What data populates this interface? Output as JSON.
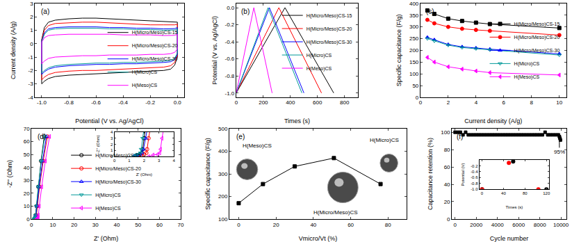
{
  "chart_data": [
    {
      "type": "line",
      "title": "(a)",
      "x_label": "Potential (V vs. Ag/AgCl)",
      "y_label": "Current density (A/g)",
      "xlim": [
        -1.05,
        0.05
      ],
      "xticks": [
        {
          "value": -1,
          "label": "-1.0"
        },
        -0.8,
        -0.6,
        -0.4,
        -0.2,
        {
          "value": 0,
          "label": "0.0"
        }
      ],
      "ylim": [
        -4,
        3
      ],
      "yticks": [
        -4,
        -3,
        -2,
        -1,
        0,
        1,
        2,
        3
      ],
      "grid": false,
      "legend": "lower right",
      "series": [
        {
          "name": "H(Micro/Meso)CS-15",
          "color": "#000000",
          "x": [
            -1.0,
            -0.98,
            -0.95,
            -0.9,
            -0.8,
            -0.7,
            -0.6,
            -0.5,
            -0.4,
            -0.3,
            -0.2,
            -0.1,
            -0.05,
            -0.02,
            0.0,
            0.0,
            -0.02,
            -0.05,
            -0.1,
            -0.2,
            -0.3,
            -0.4,
            -0.5,
            -0.6,
            -0.7,
            -0.8,
            -0.9,
            -0.95,
            -0.98,
            -1.0,
            -1.0
          ],
          "values": [
            0.3,
            1.2,
            1.6,
            1.75,
            1.85,
            1.9,
            1.9,
            1.85,
            1.8,
            1.75,
            1.7,
            1.65,
            1.65,
            1.62,
            1.6,
            -1.0,
            -1.6,
            -1.9,
            -2.0,
            -2.05,
            -2.1,
            -2.15,
            -2.2,
            -2.25,
            -2.3,
            -2.35,
            -2.45,
            -2.6,
            -2.8,
            -3.0,
            0.3
          ]
        },
        {
          "name": "H(Micro/Meso)CS-20",
          "color": "#ff0000",
          "x": [
            -1.0,
            -0.98,
            -0.95,
            -0.9,
            -0.8,
            -0.7,
            -0.6,
            -0.5,
            -0.4,
            -0.3,
            -0.2,
            -0.1,
            -0.05,
            -0.02,
            0.0,
            0.0,
            -0.02,
            -0.05,
            -0.1,
            -0.2,
            -0.3,
            -0.4,
            -0.5,
            -0.6,
            -0.7,
            -0.8,
            -0.9,
            -0.95,
            -0.98,
            -1.0,
            -1.0
          ],
          "values": [
            0.25,
            1.0,
            1.35,
            1.5,
            1.55,
            1.6,
            1.6,
            1.55,
            1.5,
            1.45,
            1.4,
            1.4,
            1.4,
            1.4,
            1.45,
            -0.9,
            -1.4,
            -1.65,
            -1.75,
            -1.8,
            -1.85,
            -1.9,
            -1.95,
            -2.0,
            -2.0,
            -2.05,
            -2.15,
            -2.3,
            -2.5,
            -2.7,
            0.25
          ]
        },
        {
          "name": "H(Micro/Meso)CS-30",
          "color": "#0000ff",
          "x": [
            -1.0,
            -0.98,
            -0.95,
            -0.9,
            -0.8,
            -0.7,
            -0.6,
            -0.5,
            -0.4,
            -0.3,
            -0.2,
            -0.1,
            -0.05,
            -0.02,
            0.0,
            0.0,
            -0.02,
            -0.05,
            -0.1,
            -0.2,
            -0.3,
            -0.4,
            -0.5,
            -0.6,
            -0.7,
            -0.8,
            -0.9,
            -0.95,
            -0.98,
            -1.0,
            -1.0
          ],
          "values": [
            0.2,
            0.8,
            1.1,
            1.2,
            1.25,
            1.25,
            1.25,
            1.2,
            1.2,
            1.15,
            1.15,
            1.1,
            1.1,
            1.12,
            1.2,
            -0.8,
            -1.2,
            -1.35,
            -1.4,
            -1.45,
            -1.5,
            -1.5,
            -1.55,
            -1.55,
            -1.6,
            -1.65,
            -1.75,
            -1.9,
            -2.1,
            -2.3,
            0.2
          ]
        },
        {
          "name": "H(Micro)CS",
          "color": "#009999",
          "x": [
            -1.0,
            -0.98,
            -0.95,
            -0.9,
            -0.8,
            -0.7,
            -0.6,
            -0.5,
            -0.4,
            -0.3,
            -0.2,
            -0.1,
            -0.05,
            -0.02,
            0.0,
            0.0,
            -0.02,
            -0.05,
            -0.1,
            -0.2,
            -0.3,
            -0.4,
            -0.5,
            -0.6,
            -0.7,
            -0.8,
            -0.9,
            -0.95,
            -0.98,
            -1.0,
            -1.0
          ],
          "values": [
            0.15,
            0.7,
            1.0,
            1.1,
            1.15,
            1.15,
            1.15,
            1.1,
            1.1,
            1.05,
            1.05,
            1.0,
            1.0,
            1.02,
            1.1,
            -0.7,
            -1.1,
            -1.25,
            -1.3,
            -1.35,
            -1.4,
            -1.4,
            -1.45,
            -1.45,
            -1.5,
            -1.55,
            -1.65,
            -1.8,
            -2.0,
            -2.2,
            0.15
          ]
        },
        {
          "name": "H(Meso)CS",
          "color": "#ff00ff",
          "x": [
            -1.0,
            -0.98,
            -0.95,
            -0.9,
            -0.8,
            -0.7,
            -0.6,
            -0.5,
            -0.4,
            -0.3,
            -0.2,
            -0.1,
            -0.05,
            -0.02,
            0.0,
            0.0,
            -0.02,
            -0.05,
            -0.1,
            -0.2,
            -0.3,
            -0.4,
            -0.5,
            -0.6,
            -0.7,
            -0.8,
            -0.9,
            -0.95,
            -0.98,
            -1.0,
            -1.0
          ],
          "values": [
            0.1,
            0.45,
            0.6,
            0.65,
            0.7,
            0.7,
            0.7,
            0.7,
            0.65,
            0.65,
            0.65,
            0.6,
            0.6,
            0.62,
            0.7,
            -0.4,
            -0.65,
            -0.75,
            -0.8,
            -0.8,
            -0.85,
            -0.85,
            -0.85,
            -0.9,
            -0.9,
            -0.95,
            -1.0,
            -1.1,
            -1.3,
            -1.5,
            0.1
          ]
        }
      ]
    },
    {
      "type": "line",
      "title": "(b)",
      "x_label": "Times (s)",
      "y_label": "Potential (V vs. Ag/AgCl)",
      "xlim": [
        0,
        900
      ],
      "xticks": [
        0,
        200,
        400,
        600,
        800
      ],
      "ylim": [
        -1.05,
        0.05
      ],
      "yticks": [
        {
          "value": -1,
          "label": "-1.0"
        },
        -0.8,
        -0.6,
        -0.4,
        -0.2,
        {
          "value": 0,
          "label": "0.0"
        }
      ],
      "grid": false,
      "legend": "upper right",
      "series": [
        {
          "name": "H(Micro/Meso)CS-15",
          "color": "#000000",
          "x": [
            0,
            360,
            720
          ],
          "values": [
            -1,
            0,
            -1
          ]
        },
        {
          "name": "H(Micro/Meso)CS-20",
          "color": "#ff0000",
          "x": [
            0,
            315,
            630
          ],
          "values": [
            -1,
            0,
            -1
          ]
        },
        {
          "name": "H(Micro/Meso)CS-30",
          "color": "#0000ff",
          "x": [
            0,
            245,
            500
          ],
          "values": [
            -1,
            0,
            -1
          ]
        },
        {
          "name": "H(Micro)CS",
          "color": "#009999",
          "x": [
            0,
            235,
            485
          ],
          "values": [
            -1,
            0,
            -1
          ]
        },
        {
          "name": "H(Meso)CS",
          "color": "#ff00ff",
          "x": [
            0,
            130,
            265
          ],
          "values": [
            -1,
            0,
            -1
          ]
        }
      ]
    },
    {
      "type": "line",
      "title": "(c)",
      "x_label": "Current density (A/g)",
      "y_label": "Specific capacitance (F/g)",
      "xlim": [
        0,
        10.5
      ],
      "xticks": [
        0,
        2,
        4,
        6,
        8,
        10
      ],
      "ylim": [
        0,
        400
      ],
      "yticks": [
        0,
        50,
        100,
        150,
        200,
        250,
        300,
        350,
        400
      ],
      "grid": false,
      "legend": "center right",
      "series": [
        {
          "name": "H(Micro/Meso)CS-15",
          "color": "#000000",
          "marker": "square",
          "x": [
            0.5,
            1,
            2,
            3,
            4,
            5,
            10
          ],
          "values": [
            370,
            355,
            335,
            325,
            318,
            312,
            295
          ]
        },
        {
          "name": "H(Micro/Meso)CS-20",
          "color": "#ff0000",
          "marker": "circle",
          "x": [
            0.5,
            1,
            2,
            3,
            4,
            5,
            10
          ],
          "values": [
            330,
            315,
            300,
            292,
            287,
            283,
            265
          ]
        },
        {
          "name": "H(Micro/Meso)CS-30",
          "color": "#0000ff",
          "marker": "triangle-up",
          "x": [
            0.5,
            1,
            2,
            3,
            4,
            5,
            10
          ],
          "values": [
            255,
            245,
            225,
            215,
            210,
            205,
            185
          ]
        },
        {
          "name": "H(Micro)CS",
          "color": "#009999",
          "marker": "triangle-down-open",
          "x": [
            0.5,
            1,
            2,
            3,
            4,
            5,
            10
          ],
          "values": [
            250,
            240,
            222,
            212,
            207,
            202,
            180
          ]
        },
        {
          "name": "H(Meso)CS",
          "color": "#ff00ff",
          "marker": "triangle-left",
          "x": [
            0.5,
            1,
            2,
            3,
            4,
            5,
            10
          ],
          "values": [
            170,
            150,
            130,
            120,
            112,
            105,
            95
          ]
        }
      ]
    },
    {
      "type": "line",
      "title": "(d)",
      "x_label": "Z' (Ohm)",
      "y_label": "-Z'' (Ohm)",
      "xlim": [
        0,
        70
      ],
      "xticks": [
        0,
        10,
        20,
        30,
        40,
        50,
        60,
        70
      ],
      "ylim": [
        0,
        70
      ],
      "yticks": [
        0,
        10,
        20,
        30,
        40,
        50,
        60,
        70
      ],
      "grid": false,
      "legend": "lower center",
      "series": [
        {
          "name": "H(Micro/Meso)CS-15",
          "color": "#000000",
          "marker": "circle-open",
          "x": [
            1.35,
            1.5,
            1.7,
            1.85,
            1.9,
            2.0,
            2.4,
            3.2,
            4.5,
            6
          ],
          "values": [
            0,
            0.25,
            0.35,
            0.6,
            1.2,
            3,
            10,
            25,
            45,
            64
          ]
        },
        {
          "name": "H(Micro/Meso)CS-20",
          "color": "#ff0000",
          "marker": "circle-open",
          "x": [
            1.6,
            1.8,
            2.0,
            2.15,
            2.2,
            2.3,
            2.8,
            3.8,
            5.5,
            7.5
          ],
          "values": [
            0,
            0.25,
            0.35,
            0.6,
            1.2,
            3,
            10,
            25,
            45,
            64
          ]
        },
        {
          "name": "H(Micro/Meso)CS-30",
          "color": "#0000ff",
          "marker": "triangle-up-open",
          "x": [
            1.3,
            1.5,
            1.7,
            1.85,
            1.95,
            2.1,
            2.6,
            3.6,
            5.2,
            7
          ],
          "values": [
            0,
            0.25,
            0.35,
            0.6,
            1.2,
            3,
            10,
            25,
            45,
            64
          ]
        },
        {
          "name": "H(Micro)CS",
          "color": "#009999",
          "marker": "triangle-down-open",
          "x": [
            1.3,
            1.45,
            1.6,
            1.75,
            1.8,
            1.9,
            2.3,
            3.2,
            4.6,
            6.2
          ],
          "values": [
            0,
            0.25,
            0.35,
            0.6,
            1.2,
            3,
            10,
            25,
            45,
            64
          ]
        },
        {
          "name": "H(Meso)CS",
          "color": "#ff00ff",
          "marker": "triangle-left-open",
          "x": [
            2.3,
            2.6,
            2.9,
            3.05,
            3.1,
            3.2,
            3.7,
            4.8,
            6.5,
            8.5
          ],
          "values": [
            0,
            0.25,
            0.35,
            0.6,
            1.2,
            3,
            10,
            25,
            45,
            64
          ]
        }
      ],
      "inset": {
        "x_label": "Z' (Ohm)",
        "y_label": "-Z'' (Ohm)",
        "xlim": [
          0,
          4
        ],
        "xticks": [
          0,
          1,
          2,
          3,
          4
        ],
        "ylim": [
          0,
          4
        ],
        "yticks": [
          0,
          1,
          2,
          3,
          4
        ]
      }
    },
    {
      "type": "line",
      "title": "(e)",
      "x_label": "Vmicro/Vt (%)",
      "y_label": "Specific capacitance (F/g)",
      "xlim": [
        -5,
        90
      ],
      "xticks": [
        0,
        20,
        40,
        60,
        80
      ],
      "ylim": [
        100,
        500
      ],
      "yticks": [
        100,
        200,
        300,
        400,
        500
      ],
      "grid": false,
      "series": [
        {
          "color": "#000000",
          "marker": "square",
          "x": [
            0,
            13,
            30,
            51,
            76
          ],
          "values": [
            170,
            255,
            333,
            370,
            255
          ]
        }
      ],
      "annotations": [
        {
          "text": "H(Meso)CS",
          "x": 10,
          "y": 425
        },
        {
          "text": "H(Micro/Meso)CS",
          "x": 52,
          "y": 130
        },
        {
          "text": "H(Micro)CS",
          "x": 78,
          "y": 450
        }
      ]
    },
    {
      "type": "scatter",
      "title": "(f)",
      "x_label": "Cycle number",
      "y_label": "Capacitance retention (%)",
      "xlim": [
        -300,
        10500
      ],
      "xticks": [
        0,
        2000,
        4000,
        6000,
        8000,
        10000
      ],
      "ylim": [
        0,
        104
      ],
      "yticks": [
        0,
        20,
        40,
        60,
        80,
        100
      ],
      "grid": false,
      "series": [
        {
          "color": "#000000",
          "marker": "square",
          "x": [
            0,
            250,
            500,
            750,
            1000,
            1250,
            1500,
            1750,
            2000,
            2250,
            2500,
            2750,
            3000,
            3250,
            3500,
            3750,
            4000,
            4250,
            4500,
            4750,
            5000,
            5250,
            5500,
            5750,
            6000,
            6250,
            6500,
            6750,
            7000,
            7250,
            7500,
            7750,
            8000,
            8250,
            8500,
            8750,
            9000,
            9250,
            9500,
            9750,
            9850,
            9900,
            9950
          ],
          "values": [
            100,
            100,
            100,
            97,
            100,
            97,
            97,
            97,
            97,
            97,
            97,
            97,
            97,
            97,
            97,
            97,
            97,
            97,
            97,
            97,
            97,
            97,
            97,
            97,
            97,
            97,
            97,
            97,
            97,
            97,
            97,
            97,
            97,
            97,
            100,
            97,
            97,
            97,
            97,
            97,
            95,
            93,
            91
          ]
        }
      ],
      "annotations": [
        {
          "text": "95%",
          "x": 9850,
          "y": 95,
          "arrow": true
        }
      ],
      "inset": {
        "x_label": "Times (s)",
        "y_label": "Potential (V)",
        "xlim": [
          -5,
          125
        ],
        "xticks": [
          0,
          40,
          80,
          120
        ],
        "ylim": [
          -1,
          0
        ],
        "yticks": [
          {
            "value": -1,
            "label": "-1.0"
          },
          -0.8,
          -0.6,
          -0.4,
          -0.2
        ],
        "series": [
          {
            "color": "#000000",
            "x": [
              0,
              58,
              120
            ],
            "values": [
              -1,
              -0.05,
              -1
            ]
          },
          {
            "color": "#ff0000",
            "x": [
              0,
              50,
              105
            ],
            "values": [
              -1,
              -0.1,
              -1
            ]
          }
        ]
      }
    }
  ]
}
